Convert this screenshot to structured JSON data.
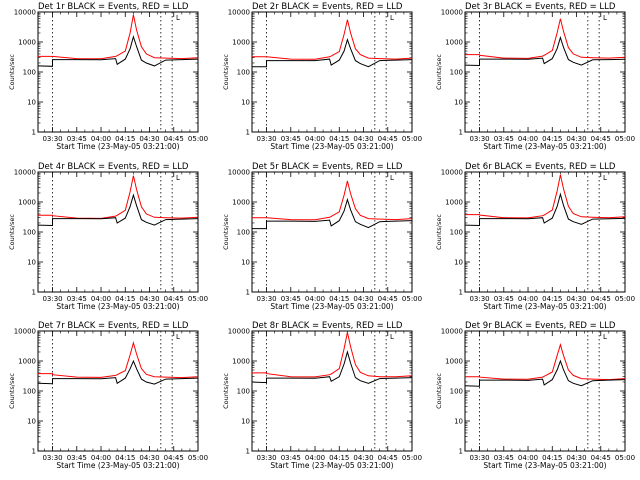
{
  "figure": {
    "colors": {
      "events": "#000000",
      "lld": "#ff0000",
      "background": "#ffffff"
    },
    "shared_axes": {
      "xlabel": "Start Time (23-May-05 03:21:00)",
      "ylabel": "Counts/sec",
      "x_tick_labels": [
        "03:30",
        "03:45",
        "04:00",
        "04:15",
        "04:30",
        "04:45",
        "05:00"
      ],
      "y_tick_labels": [
        "1",
        "10",
        "100",
        "1000",
        "10000"
      ],
      "y_scale": "log",
      "ylim": [
        1,
        10000
      ],
      "xlim": [
        "03:21",
        "05:00"
      ],
      "vertical_dotted_lines": [
        "03:30",
        "04:37",
        "04:44"
      ],
      "corner_mark": "L"
    }
  },
  "chart_data": [
    {
      "type": "line",
      "title": "Det 1r BLACK = Events, RED = LLD",
      "xlabel": "Start Time (23-May-05 03:21:00)",
      "ylabel": "Counts/sec",
      "x": [
        "03:21",
        "03:30",
        "03:30",
        "03:45",
        "04:00",
        "04:09",
        "04:10",
        "04:15",
        "04:18",
        "04:20",
        "04:22",
        "04:25",
        "04:28",
        "04:33",
        "04:40",
        "04:50",
        "05:00"
      ],
      "series": [
        {
          "name": "BLACK = Events",
          "values": [
            160,
            155,
            260,
            260,
            255,
            280,
            180,
            270,
            600,
            1500,
            700,
            250,
            200,
            160,
            250,
            260,
            270
          ]
        },
        {
          "name": "RED = LLD",
          "values": [
            330,
            330,
            330,
            280,
            275,
            330,
            350,
            500,
            2000,
            8000,
            2500,
            700,
            400,
            300,
            290,
            280,
            300
          ]
        }
      ]
    },
    {
      "type": "line",
      "title": "Det 2r BLACK = Events, RED = LLD",
      "xlabel": "Start Time (23-May-05 03:21:00)",
      "ylabel": "Counts/sec",
      "x": [
        "03:21",
        "03:30",
        "03:30",
        "03:45",
        "04:00",
        "04:09",
        "04:10",
        "04:15",
        "04:18",
        "04:20",
        "04:22",
        "04:25",
        "04:28",
        "04:33",
        "04:40",
        "04:50",
        "05:00"
      ],
      "series": [
        {
          "name": "BLACK = Events",
          "values": [
            150,
            150,
            240,
            240,
            240,
            270,
            170,
            250,
            500,
            1200,
            600,
            240,
            190,
            150,
            240,
            250,
            260
          ]
        },
        {
          "name": "RED = LLD",
          "values": [
            320,
            320,
            320,
            270,
            265,
            320,
            340,
            480,
            1800,
            5500,
            2000,
            600,
            380,
            290,
            280,
            270,
            290
          ]
        }
      ]
    },
    {
      "type": "line",
      "title": "Det 3r BLACK = Events, RED = LLD",
      "xlabel": "Start Time (23-May-05 03:21:00)",
      "ylabel": "Counts/sec",
      "x": [
        "03:21",
        "03:30",
        "03:30",
        "03:45",
        "04:00",
        "04:09",
        "04:10",
        "04:15",
        "04:18",
        "04:20",
        "04:22",
        "04:25",
        "04:28",
        "04:33",
        "04:40",
        "04:50",
        "05:00"
      ],
      "series": [
        {
          "name": "BLACK = Events",
          "values": [
            170,
            165,
            270,
            270,
            265,
            290,
            190,
            280,
            600,
            1400,
            650,
            260,
            210,
            170,
            255,
            260,
            265
          ]
        },
        {
          "name": "RED = LLD",
          "values": [
            380,
            380,
            360,
            290,
            285,
            340,
            360,
            520,
            2000,
            6000,
            2200,
            650,
            400,
            310,
            300,
            290,
            310
          ]
        }
      ]
    },
    {
      "type": "line",
      "title": "Det 4r BLACK = Events, RED = LLD",
      "xlabel": "Start Time (23-May-05 03:21:00)",
      "ylabel": "Counts/sec",
      "x": [
        "03:21",
        "03:30",
        "03:30",
        "03:45",
        "04:00",
        "04:09",
        "04:10",
        "04:15",
        "04:18",
        "04:20",
        "04:22",
        "04:25",
        "04:28",
        "04:33",
        "04:40",
        "04:50",
        "05:00"
      ],
      "series": [
        {
          "name": "BLACK = Events",
          "values": [
            170,
            165,
            280,
            280,
            275,
            300,
            200,
            290,
            700,
            1700,
            750,
            260,
            210,
            170,
            260,
            270,
            280
          ]
        },
        {
          "name": "RED = LLD",
          "values": [
            360,
            360,
            350,
            290,
            285,
            340,
            360,
            530,
            2200,
            7500,
            2600,
            700,
            400,
            310,
            300,
            290,
            310
          ]
        }
      ]
    },
    {
      "type": "line",
      "title": "Det 5r BLACK = Events, RED = LLD",
      "xlabel": "Start Time (23-May-05 03:21:00)",
      "ylabel": "Counts/sec",
      "x": [
        "03:21",
        "03:30",
        "03:30",
        "03:45",
        "04:00",
        "04:09",
        "04:10",
        "04:15",
        "04:18",
        "04:20",
        "04:22",
        "04:25",
        "04:28",
        "04:33",
        "04:40",
        "04:50",
        "05:00"
      ],
      "series": [
        {
          "name": "BLACK = Events",
          "values": [
            130,
            130,
            230,
            230,
            225,
            250,
            160,
            240,
            500,
            1200,
            550,
            220,
            180,
            140,
            220,
            230,
            240
          ]
        },
        {
          "name": "RED = LLD",
          "values": [
            300,
            300,
            300,
            260,
            255,
            310,
            330,
            470,
            1700,
            5000,
            1900,
            600,
            360,
            280,
            270,
            260,
            280
          ]
        }
      ]
    },
    {
      "type": "line",
      "title": "Det 6r BLACK = Events, RED = LLD",
      "xlabel": "Start Time (23-May-05 03:21:00)",
      "ylabel": "Counts/sec",
      "x": [
        "03:21",
        "03:30",
        "03:30",
        "03:45",
        "04:00",
        "04:09",
        "04:10",
        "04:15",
        "04:18",
        "04:20",
        "04:22",
        "04:25",
        "04:28",
        "04:33",
        "04:40",
        "04:50",
        "05:00"
      ],
      "series": [
        {
          "name": "BLACK = Events",
          "values": [
            170,
            165,
            280,
            280,
            275,
            300,
            200,
            290,
            700,
            1800,
            750,
            270,
            220,
            180,
            270,
            275,
            285
          ]
        },
        {
          "name": "RED = LLD",
          "values": [
            380,
            380,
            370,
            300,
            295,
            350,
            370,
            540,
            2300,
            8000,
            2700,
            720,
            410,
            320,
            310,
            300,
            320
          ]
        }
      ]
    },
    {
      "type": "line",
      "title": "Det 7r BLACK = Events, RED = LLD",
      "xlabel": "Start Time (23-May-05 03:21:00)",
      "ylabel": "Counts/sec",
      "x": [
        "03:21",
        "03:30",
        "03:30",
        "03:45",
        "04:00",
        "04:09",
        "04:10",
        "04:15",
        "04:18",
        "04:20",
        "04:22",
        "04:25",
        "04:28",
        "04:33",
        "04:40",
        "04:50",
        "05:00"
      ],
      "series": [
        {
          "name": "BLACK = Events",
          "values": [
            180,
            175,
            260,
            260,
            255,
            280,
            180,
            270,
            550,
            1000,
            550,
            250,
            200,
            170,
            250,
            260,
            270
          ]
        },
        {
          "name": "RED = LLD",
          "values": [
            380,
            380,
            350,
            290,
            285,
            330,
            350,
            480,
            1600,
            4000,
            1700,
            560,
            360,
            300,
            290,
            280,
            300
          ]
        }
      ]
    },
    {
      "type": "line",
      "title": "Det 8r BLACK = Events, RED = LLD",
      "xlabel": "Start Time (23-May-05 03:21:00)",
      "ylabel": "Counts/sec",
      "x": [
        "03:21",
        "03:30",
        "03:30",
        "03:45",
        "04:00",
        "04:09",
        "04:10",
        "04:15",
        "04:18",
        "04:20",
        "04:22",
        "04:25",
        "04:28",
        "04:33",
        "04:40",
        "04:50",
        "05:00"
      ],
      "series": [
        {
          "name": "BLACK = Events",
          "values": [
            200,
            190,
            270,
            270,
            265,
            300,
            210,
            300,
            800,
            2000,
            850,
            280,
            220,
            180,
            260,
            270,
            280
          ]
        },
        {
          "name": "RED = LLD",
          "values": [
            400,
            400,
            380,
            300,
            295,
            350,
            370,
            560,
            2600,
            9000,
            3000,
            760,
            420,
            320,
            300,
            300,
            320
          ]
        }
      ]
    },
    {
      "type": "line",
      "title": "Det 9r BLACK = Events, RED = LLD",
      "xlabel": "Start Time (23-May-05 03:21:00)",
      "ylabel": "Counts/sec",
      "x": [
        "03:21",
        "03:30",
        "03:30",
        "03:45",
        "04:00",
        "04:09",
        "04:10",
        "04:15",
        "04:18",
        "04:20",
        "04:22",
        "04:25",
        "04:28",
        "04:33",
        "04:40",
        "04:50",
        "05:00"
      ],
      "series": [
        {
          "name": "BLACK = Events",
          "values": [
            150,
            145,
            230,
            230,
            225,
            250,
            160,
            240,
            500,
            1000,
            500,
            220,
            180,
            150,
            220,
            230,
            240
          ]
        },
        {
          "name": "RED = LLD",
          "values": [
            300,
            300,
            290,
            250,
            245,
            290,
            310,
            430,
            1500,
            3500,
            1500,
            500,
            330,
            260,
            250,
            240,
            260
          ]
        }
      ]
    }
  ]
}
